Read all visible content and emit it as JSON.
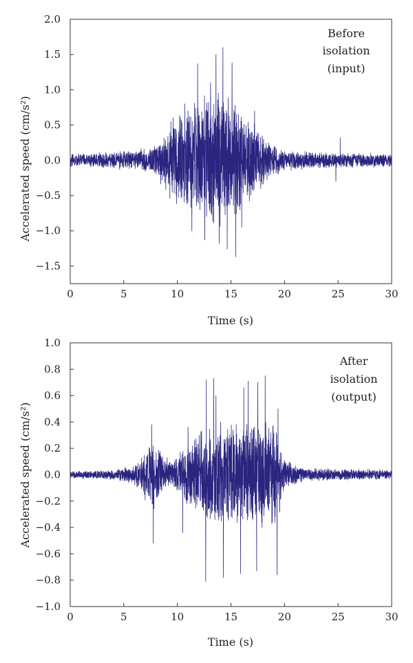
{
  "chart_data": [
    {
      "type": "line",
      "xlabel": "Time (s)",
      "ylabel": "Accelerated speed (cm/s²)",
      "annotation": [
        "Before",
        "isolation",
        "(input)"
      ],
      "xlim": [
        0,
        30
      ],
      "ylim": [
        -1.75,
        2.0
      ],
      "xticks": [
        0,
        5,
        10,
        15,
        20,
        25,
        30
      ],
      "yticks": [
        -1.5,
        -1.0,
        -0.5,
        0.0,
        0.5,
        1.0,
        1.5,
        2.0
      ],
      "ytick_labels": [
        "−1.5",
        "−1.0",
        "−0.5",
        "0.0",
        "0.5",
        "1.0",
        "1.5",
        "2.0"
      ],
      "grid": false,
      "line_color": "#2b2580",
      "series": [
        {
          "envelope": [
            [
              0,
              0.1
            ],
            [
              3,
              0.12
            ],
            [
              6,
              0.15
            ],
            [
              7.5,
              0.2
            ],
            [
              8.5,
              0.35
            ],
            [
              9.5,
              0.6
            ],
            [
              11,
              0.8
            ],
            [
              12.5,
              0.95
            ],
            [
              14,
              1.0
            ],
            [
              15.5,
              0.85
            ],
            [
              17,
              0.6
            ],
            [
              18.5,
              0.3
            ],
            [
              20,
              0.15
            ],
            [
              24,
              0.12
            ],
            [
              30,
              0.1
            ]
          ],
          "peaks": [
            [
              14.25,
              1.6
            ],
            [
              13.6,
              1.5
            ],
            [
              11.9,
              1.37
            ],
            [
              15.1,
              1.38
            ],
            [
              15.45,
              -1.37
            ],
            [
              14.65,
              -1.26
            ],
            [
              12.55,
              -1.13
            ],
            [
              11.35,
              -1.0
            ],
            [
              13.1,
              1.1
            ],
            [
              16.0,
              -0.95
            ],
            [
              9.6,
              0.6
            ],
            [
              10.7,
              0.8
            ],
            [
              25.2,
              0.32
            ],
            [
              24.8,
              -0.3
            ],
            [
              17.2,
              0.7
            ],
            [
              13.9,
              -1.18
            ]
          ]
        }
      ]
    },
    {
      "type": "line",
      "xlabel": "Time (s)",
      "ylabel": "Accelerated speed (cm/s²)",
      "annotation": [
        "After",
        "isolation",
        "(output)"
      ],
      "xlim": [
        0,
        30
      ],
      "ylim": [
        -1.0,
        1.0
      ],
      "xticks": [
        0,
        5,
        10,
        15,
        20,
        25,
        30
      ],
      "yticks": [
        -1.0,
        -0.8,
        -0.6,
        -0.4,
        -0.2,
        0.0,
        0.2,
        0.4,
        0.6,
        0.8,
        1.0
      ],
      "ytick_labels": [
        "−1.0",
        "−0.8",
        "−0.6",
        "−0.4",
        "−0.2",
        "0.0",
        "0.2",
        "0.4",
        "0.6",
        "0.8",
        "1.0"
      ],
      "grid": false,
      "line_color": "#2b2580",
      "series": [
        {
          "envelope": [
            [
              0,
              0.03
            ],
            [
              4,
              0.04
            ],
            [
              6,
              0.08
            ],
            [
              7,
              0.2
            ],
            [
              7.7,
              0.28
            ],
            [
              8.5,
              0.16
            ],
            [
              9.5,
              0.12
            ],
            [
              10.5,
              0.2
            ],
            [
              12,
              0.35
            ],
            [
              13.5,
              0.42
            ],
            [
              15,
              0.4
            ],
            [
              16.5,
              0.42
            ],
            [
              18,
              0.45
            ],
            [
              19.3,
              0.4
            ],
            [
              20,
              0.12
            ],
            [
              22,
              0.05
            ],
            [
              30,
              0.04
            ]
          ],
          "peaks": [
            [
              12.65,
              -0.81
            ],
            [
              18.2,
              0.75
            ],
            [
              12.7,
              0.72
            ],
            [
              13.4,
              0.73
            ],
            [
              16.6,
              0.71
            ],
            [
              7.6,
              0.38
            ],
            [
              7.75,
              -0.52
            ],
            [
              15.9,
              -0.75
            ],
            [
              17.5,
              0.7
            ],
            [
              19.3,
              -0.76
            ],
            [
              19.4,
              0.5
            ],
            [
              14.3,
              -0.78
            ],
            [
              13.6,
              0.6
            ],
            [
              16.2,
              0.66
            ],
            [
              17.4,
              -0.73
            ],
            [
              11.0,
              0.36
            ],
            [
              10.5,
              -0.44
            ]
          ]
        }
      ]
    }
  ]
}
